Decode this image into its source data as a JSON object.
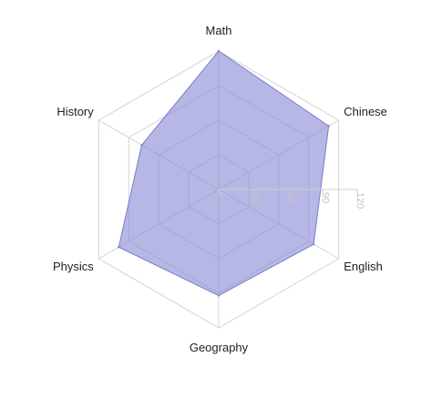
{
  "chart_data": {
    "type": "radar",
    "title": "",
    "categories": [
      "Math",
      "Chinese",
      "English",
      "Geography",
      "Physics",
      "History"
    ],
    "series": [
      {
        "values": [
          120,
          110,
          95,
          92,
          100,
          77
        ]
      }
    ],
    "radial_ticks": [
      0,
      30,
      60,
      90,
      120
    ],
    "rlim": [
      0,
      120
    ],
    "grid": true,
    "grid_shape": "polygon",
    "colors": {
      "fill": "#8a8ad6",
      "fill_opacity": 0.62,
      "stroke": "#7a7acc",
      "grid": "#d4d4d4",
      "tick_text": "#c4c4c4",
      "label_text": "#1f1f1f"
    }
  }
}
